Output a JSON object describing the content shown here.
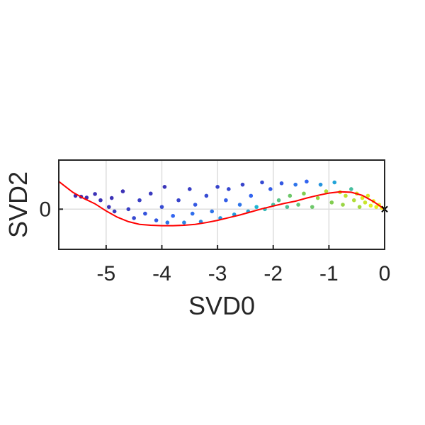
{
  "chart_data": {
    "type": "scatter",
    "xlabel": "SVD0",
    "ylabel": "SVD2",
    "xlim": [
      -5.85,
      0
    ],
    "ylim": [
      -0.9,
      1.1
    ],
    "xticks": [
      -5,
      -4,
      -3,
      -2,
      -1,
      0
    ],
    "xtick_labels": [
      "-5",
      "-4",
      "-3",
      "-2",
      "-1",
      "0"
    ],
    "yticks": [
      0
    ],
    "ytick_labels": [
      "0"
    ],
    "grid": true,
    "colormap": "parula (dark blue → cyan → green → yellow)",
    "colors": {
      "curve": "#ff0000",
      "marker": "#000000",
      "axes": "#262626",
      "grid": "#dddddd"
    },
    "series": [
      {
        "type": "line",
        "points": [
          [
            -5.85,
            0.62
          ],
          [
            -5.6,
            0.38
          ],
          [
            -5.4,
            0.24
          ],
          [
            -5.2,
            0.12
          ],
          [
            -5.0,
            -0.04
          ],
          [
            -4.8,
            -0.18
          ],
          [
            -4.6,
            -0.28
          ],
          [
            -4.4,
            -0.34
          ],
          [
            -4.2,
            -0.36
          ],
          [
            -4.0,
            -0.37
          ],
          [
            -3.8,
            -0.37
          ],
          [
            -3.6,
            -0.36
          ],
          [
            -3.4,
            -0.34
          ],
          [
            -3.2,
            -0.3
          ],
          [
            -3.0,
            -0.25
          ],
          [
            -2.8,
            -0.19
          ],
          [
            -2.6,
            -0.13
          ],
          [
            -2.4,
            -0.06
          ],
          [
            -2.2,
            0.01
          ],
          [
            -2.0,
            0.07
          ],
          [
            -1.8,
            0.13
          ],
          [
            -1.6,
            0.18
          ],
          [
            -1.4,
            0.25
          ],
          [
            -1.2,
            0.31
          ],
          [
            -1.0,
            0.36
          ],
          [
            -0.8,
            0.39
          ],
          [
            -0.6,
            0.38
          ],
          [
            -0.4,
            0.31
          ],
          [
            -0.2,
            0.17
          ],
          [
            0.0,
            0.0
          ]
        ]
      },
      {
        "type": "scatter",
        "points": [
          [
            -5.55,
            0.3,
            0.02
          ],
          [
            -5.45,
            0.28,
            0.03
          ],
          [
            -5.35,
            0.26,
            0.03
          ],
          [
            -5.2,
            0.34,
            0.05
          ],
          [
            -5.1,
            0.2,
            0.04
          ],
          [
            -4.95,
            0.05,
            0.06
          ],
          [
            -4.85,
            -0.05,
            0.08
          ],
          [
            -4.9,
            0.25,
            0.05
          ],
          [
            -4.7,
            0.4,
            0.05
          ],
          [
            -4.6,
            0.0,
            0.1
          ],
          [
            -4.5,
            -0.2,
            0.14
          ],
          [
            -4.4,
            0.2,
            0.1
          ],
          [
            -4.3,
            -0.1,
            0.18
          ],
          [
            -4.2,
            0.35,
            0.08
          ],
          [
            -4.1,
            -0.25,
            0.2
          ],
          [
            -4.0,
            0.05,
            0.15
          ],
          [
            -3.95,
            0.5,
            0.06
          ],
          [
            -3.9,
            -0.3,
            0.3
          ],
          [
            -3.8,
            -0.15,
            0.25
          ],
          [
            -3.7,
            0.2,
            0.12
          ],
          [
            -3.6,
            -0.3,
            0.35
          ],
          [
            -3.5,
            0.45,
            0.1
          ],
          [
            -3.45,
            -0.1,
            0.28
          ],
          [
            -3.4,
            0.1,
            0.2
          ],
          [
            -3.3,
            -0.28,
            0.38
          ],
          [
            -3.2,
            0.3,
            0.15
          ],
          [
            -3.1,
            -0.05,
            0.3
          ],
          [
            -3.0,
            0.5,
            0.12
          ],
          [
            -2.95,
            -0.2,
            0.4
          ],
          [
            -2.85,
            0.2,
            0.22
          ],
          [
            -2.8,
            0.45,
            0.14
          ],
          [
            -2.7,
            -0.12,
            0.42
          ],
          [
            -2.6,
            0.1,
            0.3
          ],
          [
            -2.55,
            0.55,
            0.12
          ],
          [
            -2.45,
            -0.05,
            0.45
          ],
          [
            -2.4,
            0.3,
            0.25
          ],
          [
            -2.3,
            0.05,
            0.5
          ],
          [
            -2.2,
            0.6,
            0.15
          ],
          [
            -2.15,
            0.0,
            0.55
          ],
          [
            -2.05,
            0.45,
            0.22
          ],
          [
            -2.0,
            0.1,
            0.6
          ],
          [
            -1.9,
            0.2,
            0.65
          ],
          [
            -1.85,
            0.58,
            0.2
          ],
          [
            -1.75,
            0.05,
            0.62
          ],
          [
            -1.7,
            0.3,
            0.7
          ],
          [
            -1.6,
            0.55,
            0.3
          ],
          [
            -1.55,
            0.1,
            0.68
          ],
          [
            -1.45,
            0.35,
            0.75
          ],
          [
            -1.4,
            0.62,
            0.25
          ],
          [
            -1.3,
            0.05,
            0.7
          ],
          [
            -1.2,
            0.25,
            0.8
          ],
          [
            -1.15,
            0.55,
            0.4
          ],
          [
            -1.05,
            0.4,
            0.85
          ],
          [
            -0.95,
            0.15,
            0.75
          ],
          [
            -0.9,
            0.6,
            0.45
          ],
          [
            -0.8,
            0.38,
            0.9
          ],
          [
            -0.75,
            0.1,
            0.8
          ],
          [
            -0.7,
            0.3,
            0.88
          ],
          [
            -0.6,
            0.45,
            0.6
          ],
          [
            -0.55,
            0.2,
            0.85
          ],
          [
            -0.5,
            0.35,
            0.92
          ],
          [
            -0.45,
            0.05,
            0.82
          ],
          [
            -0.4,
            0.25,
            0.95
          ],
          [
            -0.35,
            0.15,
            0.9
          ],
          [
            -0.3,
            0.3,
            0.93
          ],
          [
            -0.25,
            0.08,
            0.95
          ],
          [
            -0.2,
            0.18,
            0.97
          ],
          [
            -0.15,
            0.05,
            0.96
          ],
          [
            -0.1,
            0.1,
            0.98
          ],
          [
            -0.05,
            0.03,
            0.99
          ]
        ]
      },
      {
        "type": "marker",
        "symbol": "x",
        "points": [
          [
            0.0,
            0.0
          ]
        ]
      }
    ]
  }
}
